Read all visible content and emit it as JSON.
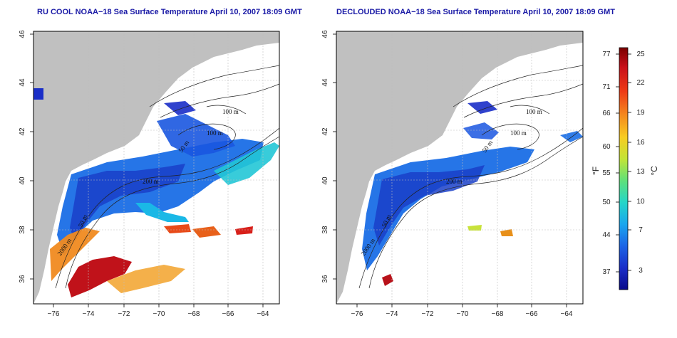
{
  "panels": [
    {
      "id": "left",
      "title": "RU COOL NOAA−18 Sea Surface Temperature April 10, 2007 18:09 GMT",
      "contour_labels": [
        "100 m",
        "100 m",
        "200 m",
        "50 m",
        "2000 m",
        "50 m",
        "200 m"
      ]
    },
    {
      "id": "right",
      "title": "DECLOUDED NOAA−18 Sea Surface Temperature April 10, 2007 18:09 GMT",
      "contour_labels": [
        "100 m",
        "100 m",
        "200 m",
        "50 m",
        "2000 m",
        "50 m",
        "200 m"
      ]
    }
  ],
  "axes": {
    "x_ticks": [
      "−76",
      "−74",
      "−72",
      "−70",
      "−68",
      "−66",
      "−64"
    ],
    "y_ticks": [
      "46",
      "44",
      "42",
      "40",
      "38",
      "36"
    ],
    "lon_range": [
      -77,
      -63
    ],
    "lat_range": [
      35,
      46
    ]
  },
  "colorbar": {
    "fahrenheit_ticks": [
      "77",
      "71",
      "66",
      "60",
      "55",
      "50",
      "44",
      "37"
    ],
    "celsius_ticks": [
      "25",
      "22",
      "19",
      "16",
      "13",
      "10",
      "7",
      "3"
    ],
    "left_unit": "°F",
    "right_unit": "°C",
    "colors": [
      "#7a0000",
      "#c8101a",
      "#ee3a16",
      "#f48a1e",
      "#f7cc22",
      "#c2e436",
      "#5fe07a",
      "#24d6c8",
      "#1aa6ee",
      "#1c64e6",
      "#1a2ec8",
      "#0a0a8a"
    ]
  },
  "colors": {
    "land": "#c0c0c0",
    "ocean_no_data": "#ffffff",
    "title": "#1a1aa6",
    "grid": "#bdbdbd"
  }
}
